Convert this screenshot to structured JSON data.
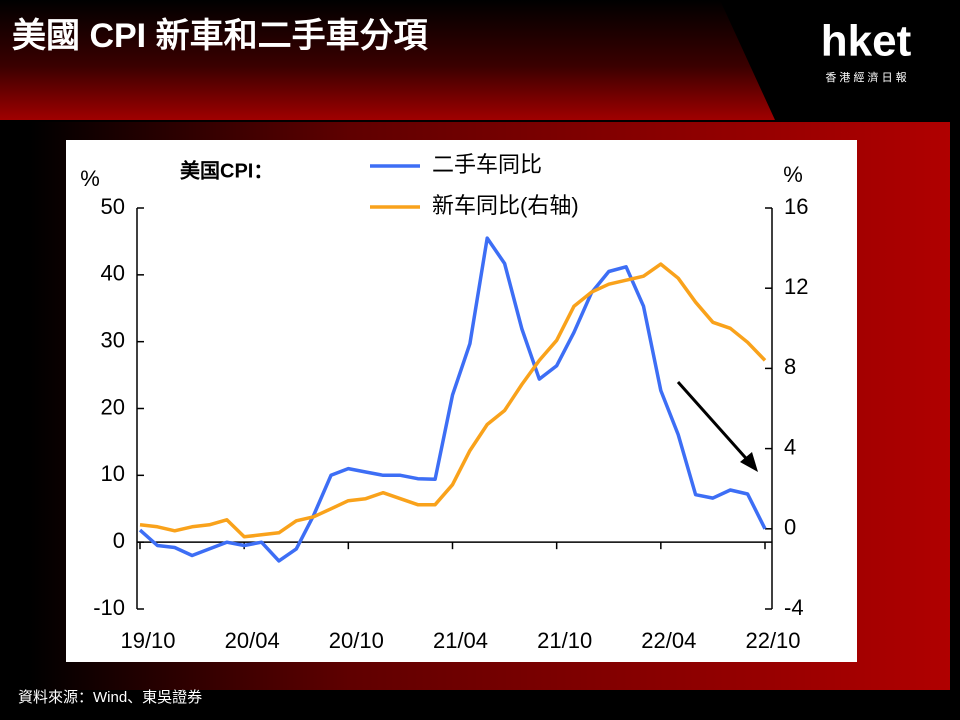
{
  "header": {
    "title": "美國 CPI 新車和二手車分項",
    "logo": "hket",
    "logo_subtitle": "香 港 經 濟 日 報"
  },
  "chart_data": {
    "type": "line",
    "title": "美国CPI：",
    "y_label": "%",
    "y2_label": "%",
    "categories": [
      "19/10",
      null,
      null,
      null,
      null,
      null,
      "20/04",
      null,
      null,
      null,
      null,
      null,
      "20/10",
      null,
      null,
      null,
      null,
      null,
      "21/04",
      null,
      null,
      null,
      null,
      null,
      "21/10",
      null,
      null,
      null,
      null,
      null,
      "22/04",
      null,
      null,
      null,
      null,
      null,
      "22/10"
    ],
    "series": [
      {
        "name": "二手车同比",
        "color": "#3d6ef5",
        "values": [
          1.8,
          -0.5,
          -0.8,
          -2,
          -1,
          0,
          -0.5,
          0,
          -2.8,
          -1,
          4,
          10,
          11,
          10.5,
          10,
          10,
          9.5,
          9.4,
          22,
          29.7,
          45.5,
          41.7,
          31.9,
          24.4,
          26.4,
          31.4,
          37.3,
          40.5,
          41.2,
          35.3,
          22.7,
          16.1,
          7.1,
          6.6,
          7.8,
          7.2,
          2
        ]
      },
      {
        "name": "新车同比(右轴)",
        "color": "#f9a21b",
        "axis": "y2",
        "values": [
          0.2,
          0.1,
          -0.1,
          0.1,
          0.2,
          0.45,
          -0.4,
          -0.3,
          -0.2,
          0.4,
          0.6,
          1.0,
          1.4,
          1.5,
          1.8,
          1.5,
          1.2,
          1.2,
          2.2,
          3.9,
          5.2,
          5.9,
          7.2,
          8.4,
          9.4,
          11.1,
          11.8,
          12.2,
          12.4,
          12.6,
          13.2,
          12.5,
          11.3,
          10.3,
          10.0,
          9.3,
          8.4
        ]
      }
    ],
    "ylim": [
      -10,
      50
    ],
    "yticks": [
      -10,
      0,
      10,
      20,
      30,
      40,
      50
    ],
    "y2lim": [
      -4,
      16
    ],
    "y2ticks": [
      -4,
      0,
      4,
      8,
      12,
      16
    ]
  },
  "source": "資料來源：Wind、東吳證券"
}
